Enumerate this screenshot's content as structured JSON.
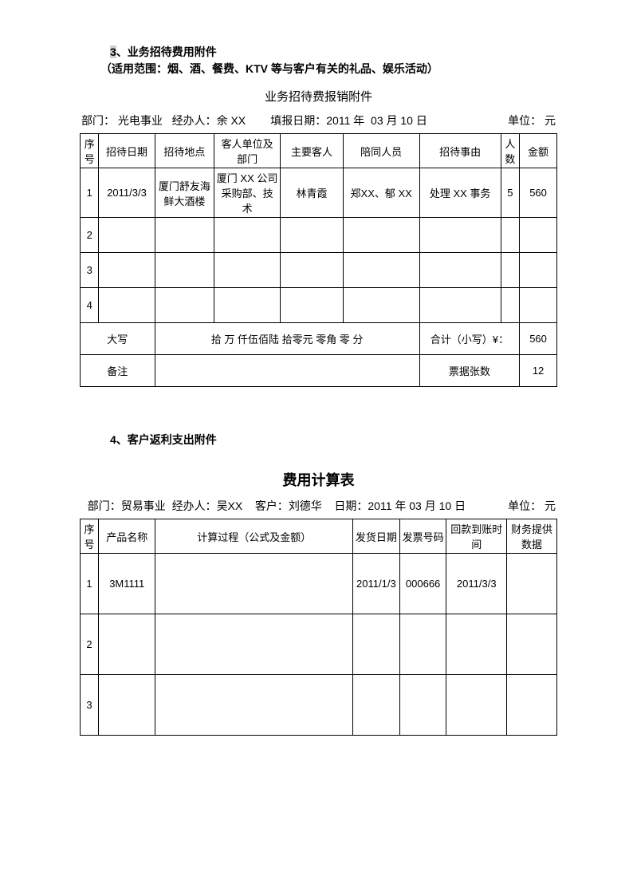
{
  "section1": {
    "heading_prefix": "3",
    "heading": "、业务招待费用附件",
    "subheading": "（适用范围：烟、酒、餐费、KTV 等与客户有关的礼品、娱乐活动）",
    "table_title": "业务招待费报销附件",
    "meta": {
      "dept_label": "部门：",
      "dept": "光电事业",
      "handler_label": "经办人：",
      "handler": "余 XX",
      "date_label": "填报日期：",
      "date": "2011 年  03 月 10 日",
      "unit_label": "单位：",
      "unit": "元"
    },
    "headers": {
      "seq": "序号",
      "date": "招待日期",
      "loc": "招待地点",
      "dept": "客人单位及部门",
      "guest": "主要客人",
      "acc": "陪同人员",
      "reason": "招待事由",
      "ppl": "人数",
      "amt": "金额"
    },
    "rows": [
      {
        "seq": "1",
        "date": "2011/3/3",
        "loc": "厦门舒友海鲜大酒楼",
        "dept": "厦门 XX 公司采购部、技术",
        "guest": "林青霞",
        "acc": "郑XX、郁 XX",
        "reason": "处理 XX 事务",
        "ppl": "5",
        "amt": "560"
      },
      {
        "seq": "2",
        "date": "",
        "loc": "",
        "dept": "",
        "guest": "",
        "acc": "",
        "reason": "",
        "ppl": "",
        "amt": ""
      },
      {
        "seq": "3",
        "date": "",
        "loc": "",
        "dept": "",
        "guest": "",
        "acc": "",
        "reason": "",
        "ppl": "",
        "amt": ""
      },
      {
        "seq": "4",
        "date": "",
        "loc": "",
        "dept": "",
        "guest": "",
        "acc": "",
        "reason": "",
        "ppl": "",
        "amt": ""
      }
    ],
    "summary": {
      "caps_label": "大写",
      "caps_value": "拾  万  仟伍佰陆 拾零元 零角 零 分",
      "total_label": "合计（小写）¥：",
      "total_value": "560",
      "remark_label": "备注",
      "remark_value": "",
      "receipt_label": "票据张数",
      "receipt_value": "12"
    }
  },
  "section2": {
    "heading": "4、客户返利支出附件",
    "table_title": "费用计算表",
    "meta": {
      "dept_label": "部门：",
      "dept": "贸易事业",
      "handler_label": "经办人：",
      "handler": "吴XX",
      "cust_label": "客户：",
      "cust": "刘德华",
      "date_label": "日期：",
      "date": "2011 年 03 月 10 日",
      "unit_label": "单位：",
      "unit": "元"
    },
    "headers": {
      "seq": "序号",
      "prod": "产品名称",
      "calc": "计算过程（公式及金额）",
      "sdate": "发货日期",
      "inv": "发票号码",
      "pdate": "回款到账时间",
      "fin": "财务提供数据"
    },
    "rows": [
      {
        "seq": "1",
        "prod": "3M1111",
        "calc": "",
        "sdate": "2011/1/3",
        "inv": "000666",
        "pdate": "2011/3/3",
        "fin": ""
      },
      {
        "seq": "2",
        "prod": "",
        "calc": "",
        "sdate": "",
        "inv": "",
        "pdate": "",
        "fin": ""
      },
      {
        "seq": "3",
        "prod": "",
        "calc": "",
        "sdate": "",
        "inv": "",
        "pdate": "",
        "fin": ""
      }
    ]
  }
}
